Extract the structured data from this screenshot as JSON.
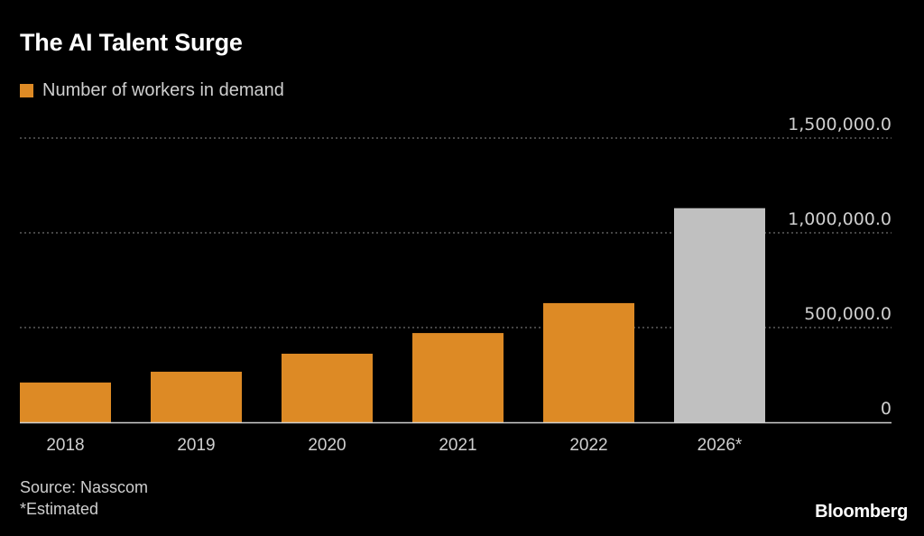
{
  "chart_data": {
    "type": "bar",
    "title": "The AI Talent Surge",
    "legend": [
      {
        "label": "Number of workers in demand",
        "color": "#dd8a25"
      }
    ],
    "categories": [
      "2018",
      "2019",
      "2020",
      "2021",
      "2022",
      "2026*"
    ],
    "series": [
      {
        "name": "Number of workers in demand",
        "values": [
          210000,
          267000,
          362000,
          471000,
          629000,
          1130000
        ]
      }
    ],
    "bar_colors": [
      "#dd8a25",
      "#dd8a25",
      "#dd8a25",
      "#dd8a25",
      "#dd8a25",
      "#c0c0c0"
    ],
    "estimated_categories": [
      "2026*"
    ],
    "yticks": [
      0,
      500000,
      1000000,
      1500000
    ],
    "ytick_labels": [
      "0",
      "500,000.0",
      "1,000,000.0",
      "1,500,000.0"
    ],
    "ylim": [
      0,
      1500000
    ],
    "y_axis_position": "right",
    "grid": true,
    "xlabel": "",
    "ylabel": "",
    "legend_position": "top-left"
  },
  "footer": {
    "source": "Source: Nasscom",
    "note": "*Estimated",
    "brand": "Bloomberg"
  }
}
